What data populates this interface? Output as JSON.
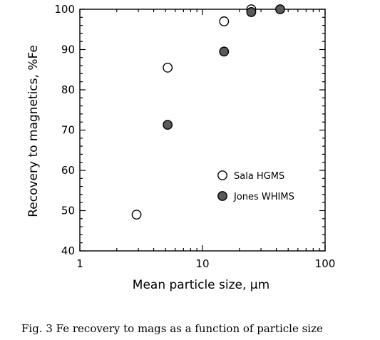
{
  "chart_data": {
    "type": "scatter",
    "title": "",
    "xlabel": "Mean particle size, μm",
    "ylabel": "Recovery to magnetics, %Fe",
    "x_scale": "log",
    "xlim": [
      1,
      100
    ],
    "ylim": [
      40,
      100
    ],
    "x_ticks": [
      1,
      10,
      100
    ],
    "x_tick_labels": [
      "1",
      "10",
      "100"
    ],
    "y_ticks": [
      40,
      50,
      60,
      70,
      80,
      90,
      100
    ],
    "y_tick_labels": [
      "40",
      "50",
      "60",
      "70",
      "80",
      "90",
      "100"
    ],
    "grid": false,
    "legend_position": "center-right",
    "series": [
      {
        "name": "Sala HGMS",
        "marker": "open-circle",
        "points": [
          {
            "x": 2.9,
            "y": 49
          },
          {
            "x": 5.2,
            "y": 85.5
          },
          {
            "x": 15,
            "y": 97
          },
          {
            "x": 25,
            "y": 100
          }
        ]
      },
      {
        "name": "Jones WHIMS",
        "marker": "filled-circle",
        "points": [
          {
            "x": 5.2,
            "y": 71.3
          },
          {
            "x": 15,
            "y": 89.5
          },
          {
            "x": 25,
            "y": 99.3
          },
          {
            "x": 43,
            "y": 100
          }
        ]
      }
    ]
  },
  "caption": "Fig. 3  Fe recovery to mags as a function of particle size",
  "colors": {
    "ink": "#000000",
    "filled_marker": "#5a5a5a",
    "open_marker_fill": "#ffffff"
  }
}
